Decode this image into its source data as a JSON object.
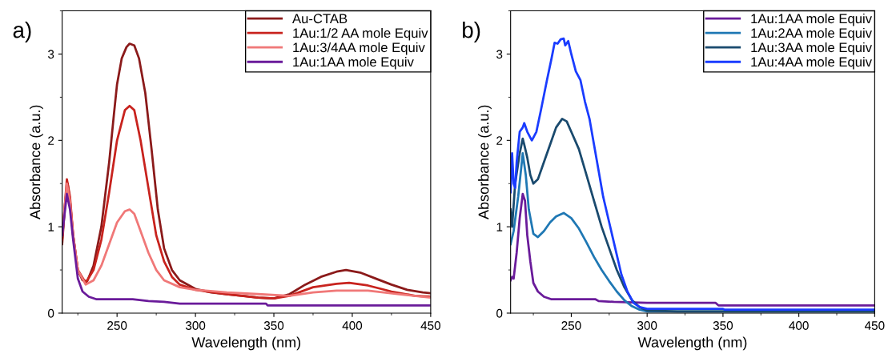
{
  "chart_data": [
    {
      "type": "line",
      "title": "a)",
      "xlabel": "Wavelength (nm)",
      "ylabel": "Absorbance (a.u.)",
      "xlim": [
        215,
        450
      ],
      "ylim": [
        0,
        3.5
      ],
      "xticks": [
        250,
        300,
        350,
        400,
        450
      ],
      "yticks": [
        0,
        1,
        2,
        3
      ],
      "grid": false,
      "legend": "top right",
      "marker": "none",
      "line_style": "solid",
      "series": [
        {
          "name": "Au-CTAB",
          "color": "#8b1a1a",
          "x": [
            215,
            217,
            218.5,
            220,
            222,
            225,
            228,
            231,
            235,
            240,
            245,
            248,
            250,
            253,
            256,
            258,
            261,
            264,
            268,
            272,
            276,
            280,
            285,
            290,
            300,
            310,
            320,
            330,
            340,
            350,
            360,
            370,
            380,
            390,
            396,
            405,
            415,
            425,
            435,
            445,
            450
          ],
          "values": [
            0.8,
            1.3,
            1.5,
            1.3,
            0.9,
            0.5,
            0.38,
            0.37,
            0.55,
            1.0,
            1.75,
            2.3,
            2.65,
            2.95,
            3.08,
            3.12,
            3.1,
            2.95,
            2.55,
            1.9,
            1.2,
            0.75,
            0.5,
            0.38,
            0.28,
            0.24,
            0.22,
            0.2,
            0.18,
            0.17,
            0.22,
            0.33,
            0.42,
            0.48,
            0.5,
            0.47,
            0.4,
            0.33,
            0.27,
            0.24,
            0.23
          ]
        },
        {
          "name": "1Au:1/2 AA mole Equiv",
          "color": "#c8231e",
          "x": [
            215,
            218,
            220,
            222,
            225,
            230,
            235,
            240,
            245,
            250,
            255,
            258,
            261,
            265,
            270,
            275,
            280,
            285,
            290,
            300,
            320,
            340,
            350,
            360,
            375,
            390,
            398,
            410,
            425,
            440,
            450
          ],
          "values": [
            0.85,
            1.55,
            1.35,
            0.9,
            0.5,
            0.35,
            0.5,
            0.85,
            1.4,
            2.0,
            2.35,
            2.4,
            2.35,
            2.0,
            1.45,
            0.9,
            0.6,
            0.42,
            0.33,
            0.27,
            0.22,
            0.18,
            0.17,
            0.2,
            0.3,
            0.34,
            0.35,
            0.32,
            0.25,
            0.2,
            0.19
          ]
        },
        {
          "name": "1Au:3/4AA mole Equiv",
          "color": "#f07878",
          "x": [
            215,
            218,
            220,
            222,
            225,
            230,
            235,
            240,
            245,
            250,
            255,
            258,
            261,
            265,
            270,
            275,
            280,
            290,
            300,
            320,
            340,
            360,
            375,
            390,
            410,
            430,
            450
          ],
          "values": [
            0.9,
            1.5,
            1.3,
            0.9,
            0.5,
            0.33,
            0.38,
            0.55,
            0.8,
            1.05,
            1.18,
            1.2,
            1.15,
            0.95,
            0.7,
            0.5,
            0.38,
            0.3,
            0.27,
            0.24,
            0.22,
            0.2,
            0.24,
            0.26,
            0.26,
            0.22,
            0.18
          ]
        },
        {
          "name": "1Au:1AA mole Equiv",
          "color": "#6a1b9a",
          "x": [
            215,
            218,
            220,
            222,
            225,
            228,
            232,
            237,
            260,
            270,
            280,
            290,
            345,
            346,
            450
          ],
          "values": [
            0.9,
            1.38,
            1.2,
            0.85,
            0.4,
            0.25,
            0.19,
            0.16,
            0.16,
            0.14,
            0.13,
            0.11,
            0.11,
            0.09,
            0.09
          ]
        }
      ]
    },
    {
      "type": "line",
      "title": "b)",
      "xlabel": "Wavelength (nm)",
      "ylabel": "Absorbance (a.u.)",
      "xlim": [
        210,
        450
      ],
      "ylim": [
        0,
        3.5
      ],
      "xticks": [
        250,
        300,
        350,
        400,
        450
      ],
      "yticks": [
        0,
        1,
        2,
        3
      ],
      "grid": false,
      "legend": "top right",
      "marker": "none",
      "line_style": "solid",
      "series": [
        {
          "name": "1Au:1AA mole Equiv",
          "color": "#6a1b9a",
          "x": [
            210,
            211,
            212,
            214,
            216,
            218,
            219.5,
            221,
            223,
            225,
            228,
            232,
            237,
            250,
            266,
            268,
            278,
            300,
            345,
            347,
            450
          ],
          "values": [
            0.38,
            0.42,
            0.4,
            0.7,
            1.1,
            1.38,
            1.3,
            0.9,
            0.6,
            0.35,
            0.25,
            0.19,
            0.16,
            0.16,
            0.16,
            0.14,
            0.13,
            0.12,
            0.12,
            0.09,
            0.09
          ]
        },
        {
          "name": "1Au:2AA mole Equiv",
          "color": "#1f78b4",
          "x": [
            210,
            212,
            215,
            218,
            220,
            222,
            225,
            228,
            232,
            236,
            240,
            245,
            250,
            255,
            260,
            265,
            270,
            275,
            280,
            285,
            290,
            295,
            300,
            320,
            450
          ],
          "values": [
            0.8,
            0.95,
            1.35,
            1.85,
            1.6,
            1.2,
            0.92,
            0.88,
            0.95,
            1.05,
            1.12,
            1.16,
            1.1,
            0.98,
            0.82,
            0.65,
            0.5,
            0.37,
            0.25,
            0.15,
            0.08,
            0.04,
            0.02,
            0.02,
            0.02
          ]
        },
        {
          "name": "1Au:3AA mole Equiv",
          "color": "#1a4a6e",
          "x": [
            210,
            211,
            213,
            216,
            218,
            219,
            221,
            223,
            225,
            228,
            232,
            236,
            240,
            244,
            247,
            250,
            255,
            260,
            265,
            270,
            275,
            280,
            285,
            290,
            295,
            300,
            320,
            450
          ],
          "values": [
            1.2,
            1.0,
            1.5,
            1.85,
            2.02,
            1.95,
            1.8,
            1.6,
            1.5,
            1.55,
            1.75,
            1.95,
            2.15,
            2.25,
            2.22,
            2.1,
            1.9,
            1.6,
            1.3,
            1.0,
            0.75,
            0.5,
            0.3,
            0.15,
            0.07,
            0.03,
            0.02,
            0.02
          ]
        },
        {
          "name": "1Au:4AA mole Equiv",
          "color": "#1a3cff",
          "x": [
            210,
            211,
            212,
            213,
            214,
            216,
            218,
            219,
            221,
            224,
            227,
            230,
            234,
            237,
            239,
            241,
            243,
            245,
            246,
            248,
            250,
            253,
            256,
            259,
            262,
            265,
            268,
            271,
            275,
            279,
            283,
            287,
            291,
            295,
            300,
            350,
            351,
            450
          ],
          "values": [
            1.4,
            1.85,
            1.5,
            1.45,
            1.75,
            2.1,
            2.15,
            2.2,
            2.1,
            2.0,
            2.1,
            2.35,
            2.7,
            2.95,
            3.13,
            3.12,
            3.17,
            3.18,
            3.1,
            3.15,
            3.0,
            2.8,
            2.7,
            2.45,
            2.25,
            1.95,
            1.65,
            1.35,
            1.05,
            0.75,
            0.45,
            0.25,
            0.12,
            0.07,
            0.05,
            0.05,
            0.04,
            0.04
          ]
        }
      ]
    }
  ]
}
